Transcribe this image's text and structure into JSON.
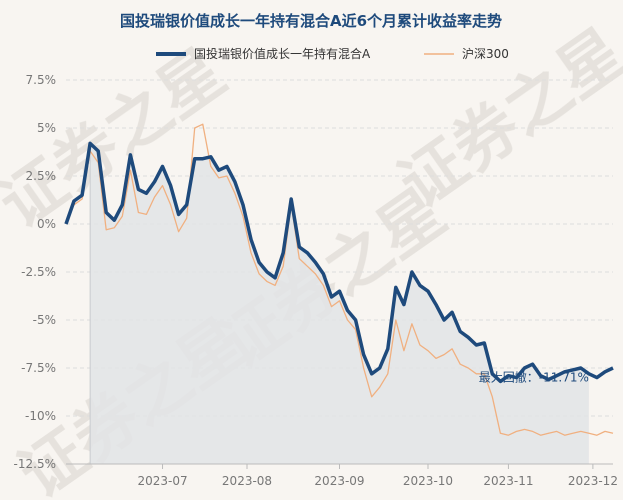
{
  "chart_data": {
    "type": "line",
    "title": "国投瑞银价值成长一年持有混合A近6个月累计收益率走势",
    "watermark": "证券之星",
    "legend": {
      "placement": "top-center"
    },
    "y_ticks": [
      "7.5%",
      "5%",
      "2.5%",
      "0%",
      "-2.5%",
      "-5%",
      "-7.5%",
      "-10%",
      "-12.5%"
    ],
    "y_tick_values": [
      7.5,
      5,
      2.5,
      0,
      -2.5,
      -5,
      -7.5,
      -10,
      -12.5
    ],
    "ylim": [
      -12.5,
      7.5
    ],
    "x_ticks": [
      "2023-07",
      "2023-08",
      "2023-09",
      "2023-10",
      "2023-11",
      "2023-12"
    ],
    "x_tick_positions": [
      24,
      45,
      68,
      90,
      110,
      131
    ],
    "x_range": [
      0,
      136
    ],
    "annotation": {
      "text": "最大回撤：-11.71%",
      "x": 131,
      "y": -8.0
    },
    "drawdown_shade": {
      "x_start": 6,
      "x_end": 131
    },
    "colors": {
      "fund": "#1e4a7c",
      "index": "#f0b080",
      "shade": "#e2e4e6"
    },
    "series": [
      {
        "name": "国投瑞银价值成长一年持有混合A",
        "x": [
          0,
          2,
          4,
          6,
          8,
          10,
          12,
          14,
          16,
          18,
          20,
          22,
          24,
          26,
          28,
          30,
          32,
          34,
          36,
          38,
          40,
          42,
          44,
          46,
          48,
          50,
          52,
          54,
          56,
          58,
          60,
          62,
          64,
          66,
          68,
          70,
          72,
          74,
          76,
          78,
          80,
          82,
          84,
          86,
          88,
          90,
          92,
          94,
          96,
          98,
          100,
          102,
          104,
          106,
          108,
          110,
          112,
          114,
          116,
          118,
          120,
          122,
          124,
          126,
          128,
          130,
          132,
          134,
          136
        ],
        "y": [
          0,
          1.2,
          1.5,
          4.2,
          3.8,
          0.6,
          0.2,
          1.0,
          3.6,
          1.8,
          1.6,
          2.2,
          3.0,
          2.0,
          0.5,
          1.0,
          3.4,
          3.4,
          3.5,
          2.8,
          3.0,
          2.2,
          1.0,
          -0.8,
          -2.0,
          -2.5,
          -2.8,
          -1.5,
          1.3,
          -1.2,
          -1.5,
          -2.0,
          -2.6,
          -3.8,
          -3.5,
          -4.5,
          -5.0,
          -6.8,
          -7.8,
          -7.5,
          -6.5,
          -3.3,
          -4.2,
          -2.5,
          -3.2,
          -3.5,
          -4.2,
          -5.0,
          -4.6,
          -5.6,
          -5.9,
          -6.3,
          -6.2,
          -7.8,
          -8.2,
          -7.9,
          -8.0,
          -7.5,
          -7.3,
          -7.9,
          -8.1,
          -7.9,
          -7.7,
          -7.6,
          -7.5,
          -7.8,
          -8.0,
          -7.7,
          -7.5
        ]
      },
      {
        "name": "沪深300",
        "x": [
          0,
          2,
          4,
          6,
          8,
          10,
          12,
          14,
          16,
          18,
          20,
          22,
          24,
          26,
          28,
          30,
          32,
          34,
          36,
          38,
          40,
          42,
          44,
          46,
          48,
          50,
          52,
          54,
          56,
          58,
          60,
          62,
          64,
          66,
          68,
          70,
          72,
          74,
          76,
          78,
          80,
          82,
          84,
          86,
          88,
          90,
          92,
          94,
          96,
          98,
          100,
          102,
          104,
          106,
          108,
          110,
          112,
          114,
          116,
          118,
          120,
          122,
          124,
          126,
          128,
          130,
          132,
          134,
          136
        ],
        "y": [
          0,
          1.0,
          1.3,
          3.8,
          3.2,
          -0.3,
          -0.2,
          0.4,
          2.8,
          0.6,
          0.5,
          1.4,
          2.0,
          1.0,
          -0.4,
          0.3,
          5.0,
          5.2,
          3.0,
          2.4,
          2.5,
          1.6,
          0.4,
          -1.5,
          -2.6,
          -3.0,
          -3.2,
          -2.2,
          1.0,
          -1.8,
          -2.2,
          -2.6,
          -3.2,
          -4.3,
          -4.0,
          -5.0,
          -5.5,
          -7.5,
          -9.0,
          -8.5,
          -7.8,
          -5.0,
          -6.6,
          -5.2,
          -6.3,
          -6.6,
          -7.0,
          -6.8,
          -6.5,
          -7.3,
          -7.5,
          -7.8,
          -7.8,
          -9.0,
          -10.9,
          -11.0,
          -10.8,
          -10.7,
          -10.8,
          -11.0,
          -10.9,
          -10.8,
          -11.0,
          -10.9,
          -10.8,
          -10.9,
          -11.0,
          -10.8,
          -10.9
        ]
      }
    ]
  }
}
